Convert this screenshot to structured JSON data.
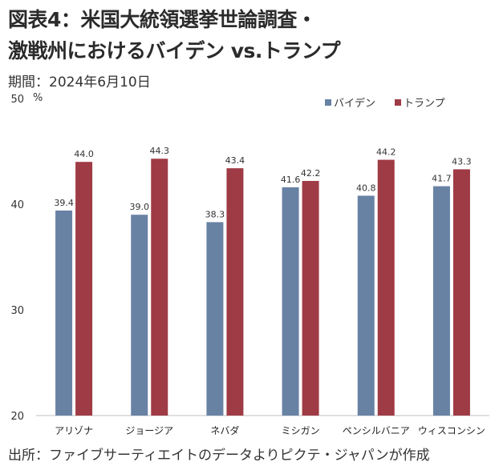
{
  "title": {
    "line1": "図表4：米国大統領選挙世論調査・",
    "line2": "激戦州におけるバイデン vs.トランプ"
  },
  "subtitle": "期間：2024年6月10日",
  "source": "出所：ファイブサーティエイトのデータよりピクテ・ジャパンが作成",
  "colors": {
    "biden": "#6882a4",
    "trump": "#9f3b45",
    "axis": "#bfbfbf"
  },
  "chart_data": {
    "type": "bar",
    "categories": [
      "アリゾナ",
      "ジョージア",
      "ネバダ",
      "ミシガン",
      "ペンシルバニア",
      "ウィスコンシン"
    ],
    "series": [
      {
        "name": "バイデン",
        "values": [
          39.4,
          39.0,
          38.3,
          41.6,
          40.8,
          41.7
        ]
      },
      {
        "name": "トランプ",
        "values": [
          44.0,
          44.3,
          43.4,
          42.2,
          44.2,
          43.3
        ]
      }
    ],
    "ylim": [
      20,
      50
    ],
    "yticks": [
      20,
      30,
      40,
      50
    ],
    "yunit": "%",
    "legend_position": "top-right",
    "grid": false
  }
}
